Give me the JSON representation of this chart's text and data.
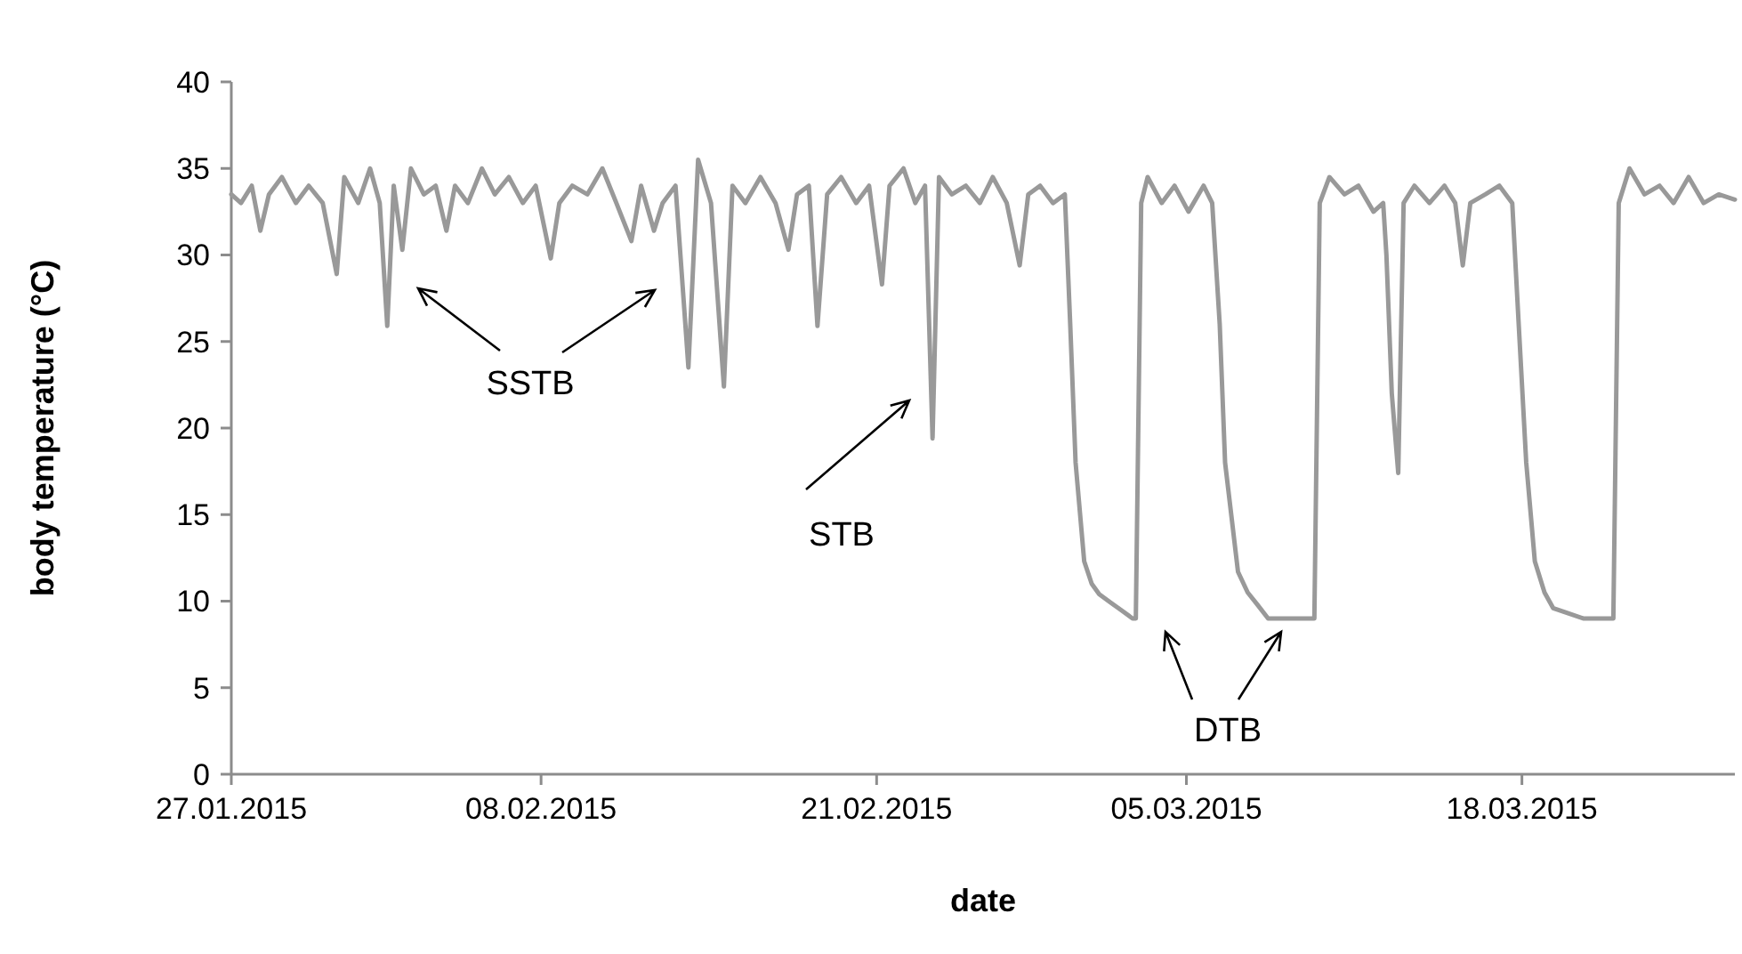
{
  "chart_data": {
    "type": "line",
    "xlabel": "date",
    "ylabel": "body temperature (°C)",
    "xlim": [
      "2015-01-27T00:00",
      "2015-03-26T06:00"
    ],
    "xticks": [
      {
        "value": "2015-01-27",
        "label": "27.01.2015"
      },
      {
        "value": "2015-02-08",
        "label": "08.02.2015"
      },
      {
        "value": "2015-02-21",
        "label": "21.02.2015"
      },
      {
        "value": "2015-03-05",
        "label": "05.03.2015"
      },
      {
        "value": "2015-03-18",
        "label": "18.03.2015"
      }
    ],
    "ylim": [
      0,
      40
    ],
    "yticks": [
      0,
      5,
      10,
      15,
      20,
      25,
      30,
      35,
      40
    ],
    "x": [
      "2015-01-27T00:00",
      "2015-01-27T09:00",
      "2015-01-27T19:00",
      "2015-01-28T03:00",
      "2015-01-28T11:00",
      "2015-01-28T23:00",
      "2015-01-29T12:00",
      "2015-01-30T00:00",
      "2015-01-30T13:00",
      "2015-01-31T02:00",
      "2015-01-31T09:00",
      "2015-01-31T22:00",
      "2015-02-01T09:00",
      "2015-02-01T18:00",
      "2015-02-02T01:00",
      "2015-02-02T07:00",
      "2015-02-02T15:00",
      "2015-02-02T23:00",
      "2015-02-03T11:00",
      "2015-02-03T22:00",
      "2015-02-04T08:00",
      "2015-02-04T16:00",
      "2015-02-05T04:00",
      "2015-02-05T17:00",
      "2015-02-06T05:00",
      "2015-02-06T18:00",
      "2015-02-07T07:00",
      "2015-02-07T19:00",
      "2015-02-08T09:00",
      "2015-02-08T17:00",
      "2015-02-09T05:00",
      "2015-02-09T19:00",
      "2015-02-10T09:00",
      "2015-02-10T22:00",
      "2015-02-11T12:00",
      "2015-02-11T21:00",
      "2015-02-12T09:00",
      "2015-02-12T17:00",
      "2015-02-13T05:00",
      "2015-02-13T17:00",
      "2015-02-14T02:00",
      "2015-02-14T14:00",
      "2015-02-15T02:00",
      "2015-02-15T10:00",
      "2015-02-15T22:00",
      "2015-02-16T12:00",
      "2015-02-17T02:00",
      "2015-02-17T14:00",
      "2015-02-17T22:00",
      "2015-02-18T09:00",
      "2015-02-18T17:00",
      "2015-02-19T02:00",
      "2015-02-19T15:00",
      "2015-02-20T05:00",
      "2015-02-20T17:00",
      "2015-02-21T05:00",
      "2015-02-21T12:00",
      "2015-02-22T01:00",
      "2015-02-22T12:00",
      "2015-02-22T21:00",
      "2015-02-23T04:00",
      "2015-02-23T10:00",
      "2015-02-23T22:00",
      "2015-02-24T11:00",
      "2015-02-25T00:00",
      "2015-02-25T12:00",
      "2015-02-26T01:00",
      "2015-02-26T13:00",
      "2015-02-26T21:00",
      "2015-02-27T08:00",
      "2015-02-27T20:00",
      "2015-02-28T07:00",
      "2015-02-28T12:00",
      "2015-02-28T17:00",
      "2015-03-01T01:00",
      "2015-03-01T08:00",
      "2015-03-01T15:00",
      "2015-03-02T02:00",
      "2015-03-02T11:00",
      "2015-03-02T22:00",
      "2015-03-03T01:00",
      "2015-03-03T06:00",
      "2015-03-03T12:00",
      "2015-03-04T01:00",
      "2015-03-04T13:00",
      "2015-03-05T02:00",
      "2015-03-05T16:00",
      "2015-03-06T00:00",
      "2015-03-06T07:00",
      "2015-03-06T12:00",
      "2015-03-07T00:00",
      "2015-03-07T09:00",
      "2015-03-07T18:00",
      "2015-03-08T04:00",
      "2015-03-09T23:00",
      "2015-03-10T04:00",
      "2015-03-10T13:00",
      "2015-03-11T03:00",
      "2015-03-11T16:00",
      "2015-03-12T06:00",
      "2015-03-12T15:00",
      "2015-03-12T18:00",
      "2015-03-12T23:00",
      "2015-03-13T05:00",
      "2015-03-13T10:00",
      "2015-03-13T20:00",
      "2015-03-14T10:00",
      "2015-03-15T00:00",
      "2015-03-15T10:00",
      "2015-03-15T17:00",
      "2015-03-16T00:00",
      "2015-03-16T14:00",
      "2015-03-17T03:00",
      "2015-03-17T15:00",
      "2015-03-17T21:00",
      "2015-03-18T04:00",
      "2015-03-18T12:00",
      "2015-03-18T21:00",
      "2015-03-19T05:00",
      "2015-03-19T19:00",
      "2015-03-20T09:00",
      "2015-03-21T13:00",
      "2015-03-21T18:00",
      "2015-03-22T04:00",
      "2015-03-22T18:00",
      "2015-03-23T08:00",
      "2015-03-23T21:00",
      "2015-03-24T11:00",
      "2015-03-25T01:00",
      "2015-03-25T15:00",
      "2015-03-26T06:00"
    ],
    "series": [
      {
        "color": "#999999",
        "values": [
          33.5,
          33,
          34,
          31.4,
          33.5,
          34.5,
          33,
          34,
          33,
          28.9,
          34.5,
          33,
          35,
          33,
          25.9,
          34,
          30.3,
          35,
          33.5,
          34,
          31.4,
          34,
          33,
          35,
          33.5,
          34.5,
          33,
          34,
          29.8,
          33,
          34,
          33.5,
          35,
          33,
          30.8,
          34,
          31.4,
          33,
          34,
          23.5,
          35.5,
          33,
          22.4,
          34,
          33,
          34.5,
          33,
          30.3,
          33.5,
          34,
          25.9,
          33.5,
          34.5,
          33,
          34,
          28.3,
          34,
          35,
          33,
          34,
          19.4,
          34.5,
          33.5,
          34,
          33,
          34.5,
          33,
          29.4,
          33.5,
          34,
          33,
          33.5,
          26,
          18,
          12.3,
          11,
          10.4,
          9.9,
          9.5,
          9,
          9,
          33,
          34.5,
          33,
          34,
          32.5,
          34,
          33,
          26,
          18,
          11.7,
          10.5,
          9.8,
          9,
          9,
          33,
          34.5,
          33.5,
          34,
          32.5,
          33,
          30,
          22,
          17.4,
          33,
          34,
          33,
          34,
          33,
          29.4,
          33,
          33.5,
          34,
          33,
          26,
          18,
          12.3,
          10.5,
          9.6,
          9.3,
          9,
          9,
          33,
          35,
          33.5,
          34,
          33,
          34.5,
          33,
          33.5,
          33.2
        ]
      }
    ],
    "annotations": [
      "SSTB",
      "STB",
      "DTB"
    ]
  }
}
